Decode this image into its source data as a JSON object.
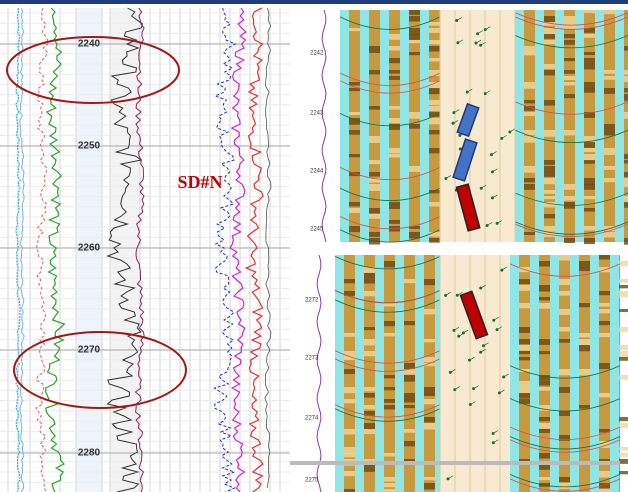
{
  "left_track": {
    "depth_labels": [
      "2240",
      "2250",
      "2260",
      "2270",
      "2280"
    ],
    "annotation": "SD#N"
  },
  "image_top": {
    "depth_labels": [
      "2242",
      "2243",
      "2244",
      "2245"
    ]
  },
  "image_bottom": {
    "depth_labels": [
      "2272",
      "2273",
      "2274",
      "2275"
    ]
  }
}
